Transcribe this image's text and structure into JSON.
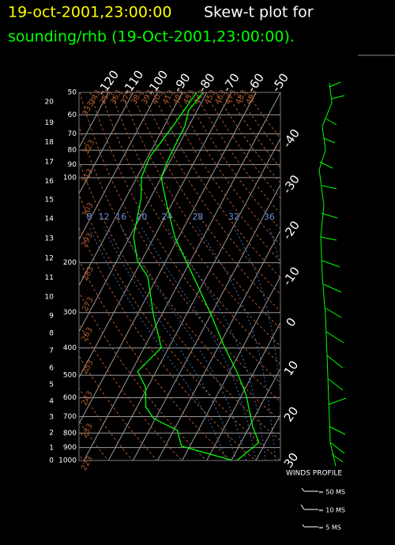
{
  "chart_data": {
    "type": "skewt",
    "title": {
      "date": "19-oct-2001,23:00:00",
      "text": "Skew-t plot for",
      "subtitle": "sounding/rhb (19-Oct-2001,23:00:00)."
    },
    "ylim": [
      50,
      1000
    ],
    "yticks": [
      50,
      60,
      70,
      80,
      90,
      100,
      200,
      300,
      400,
      500,
      600,
      700,
      800,
      900,
      1000
    ],
    "height_ticks": [
      {
        "value": 54,
        "label": "20"
      },
      {
        "value": 64,
        "label": "19"
      },
      {
        "value": 75,
        "label": "18"
      },
      {
        "value": 88,
        "label": "17"
      },
      {
        "value": 103,
        "label": "16"
      },
      {
        "value": 120,
        "label": "15"
      },
      {
        "value": 140,
        "label": "14"
      },
      {
        "value": 164,
        "label": "13"
      },
      {
        "value": 193,
        "label": "12"
      },
      {
        "value": 226,
        "label": "11"
      },
      {
        "value": 264,
        "label": "10"
      },
      {
        "value": 308,
        "label": "9"
      },
      {
        "value": 355,
        "label": "8"
      },
      {
        "value": 409,
        "label": "7"
      },
      {
        "value": 471,
        "label": "6"
      },
      {
        "value": 540,
        "label": "5"
      },
      {
        "value": 617,
        "label": "4"
      },
      {
        "value": 702,
        "label": "3"
      },
      {
        "value": 798,
        "label": "2"
      },
      {
        "value": 903,
        "label": "1"
      },
      {
        "value": 1000,
        "label": "0"
      }
    ],
    "xlim": [
      -52,
      30
    ],
    "xticks": [
      -120,
      -110,
      -100,
      -90,
      -80,
      -70,
      -60,
      -50,
      -40,
      -30,
      -20,
      -10,
      0,
      10,
      20,
      30
    ],
    "dry_adiabats": [
      223,
      233,
      243,
      253,
      263,
      273,
      283,
      293,
      303,
      313,
      323,
      333,
      343,
      353,
      363,
      373,
      383,
      393,
      403,
      413,
      423,
      433,
      443,
      453,
      463,
      473,
      483,
      493
    ],
    "moist_adiabats": [
      8,
      12,
      16,
      20,
      24,
      28,
      32,
      36
    ],
    "series": [
      {
        "name": "temperature",
        "color": "#00ff00",
        "x": [
          1000,
          863,
          759,
          587,
          484,
          399,
          308,
          238,
          197,
          162,
          125,
          100,
          85,
          75,
          66,
          58,
          50
        ],
        "values": [
          12.3,
          17.3,
          11.3,
          1.8,
          -7.2,
          -17.2,
          -29.5,
          -42.3,
          -51.9,
          -61.6,
          -71.8,
          -80.1,
          -81.2,
          -81.4,
          -81.6,
          -83.5,
          -81.5
        ]
      },
      {
        "name": "dewpoint",
        "color": "#00ff00",
        "x": [
          1000,
          890,
          783,
          711,
          646,
          550,
          484,
          399,
          308,
          224,
          197,
          162,
          118,
          100,
          85,
          66,
          50
        ],
        "values": [
          10.6,
          -13.4,
          -18.5,
          -30.7,
          -36.5,
          -40.9,
          -47.5,
          -43.0,
          -53.1,
          -64.0,
          -71.6,
          -78.4,
          -83.8,
          -88.1,
          -89.2,
          -86.5,
          -84.1
        ]
      }
    ],
    "wind_legend": {
      "title": "WINDS PROFILE",
      "items": [
        "= 50 MS",
        "= 10 MS",
        "= 5 MS"
      ]
    }
  }
}
